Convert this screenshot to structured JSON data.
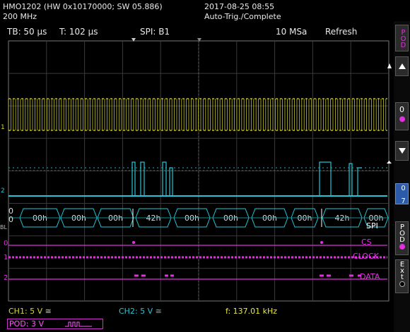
{
  "header": {
    "model": "HMO1202 (HW 0x10170000; SW 05.886)",
    "bandwidth": "200 MHz",
    "datetime": "2017-08-25 08:55",
    "acq_status": "Auto-Trig./Complete"
  },
  "status_bar": {
    "timebase": "TB: 50 µs",
    "trigger_time": "T: 102 µs",
    "bus": "SPI: B1",
    "sample_rate": "10 MSa",
    "mode": "Refresh"
  },
  "bus": {
    "label": "SPI",
    "marker": "BL",
    "start_values": [
      "0",
      "0"
    ],
    "frames": [
      "00h",
      "00h",
      "00h",
      "42h",
      "00h",
      "00h",
      "00h",
      "00h",
      "42h",
      "00h"
    ]
  },
  "digital": {
    "channel_numbers": [
      "0",
      "1",
      "2"
    ],
    "names": [
      "CS",
      "CLOCK",
      "DATA"
    ]
  },
  "markers": {
    "ch1": "1",
    "ch2": "2",
    "ch1_level": "1",
    "ch2_level": "2"
  },
  "sidebar": {
    "pod_top": "POD",
    "ch_zero": "0",
    "range": "0 7",
    "pod_mid": "POD",
    "ext": "Ext"
  },
  "footer": {
    "ch1": "CH1: 5 V ≅",
    "ch2": "CH2: 5 V ≅",
    "frequency": "f: 137.01 kHz",
    "pod": "POD: 3 V"
  },
  "colors": {
    "ch1": "#d8d82a",
    "ch2": "#22c6d8",
    "digital": "#e030e0",
    "grid": "#444444",
    "background": "#000000"
  }
}
